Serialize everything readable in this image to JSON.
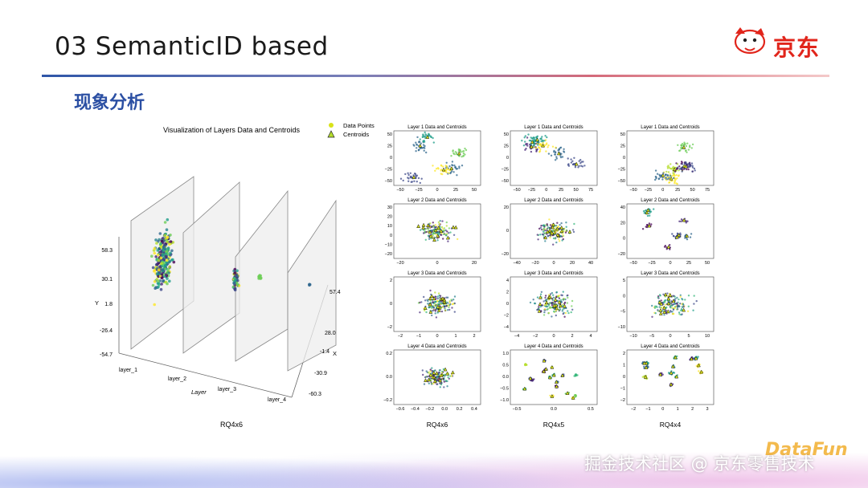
{
  "slide": {
    "title": "03 SemanticID based",
    "subtitle": "现象分析",
    "brand": "京东",
    "watermark": "掘金技术社区 @ 京东零售技术",
    "watermark_logo": "DataFun",
    "colors": {
      "accent_blue": "#2b4fa3",
      "brand_red": "#e1251b",
      "viridis_dark": "#440154",
      "viridis_mid": "#21918c",
      "viridis_yellow": "#fde725"
    }
  },
  "figure3d": {
    "title": "Visualization of Layers Data and Centroids",
    "legend": [
      "Data Points",
      "Centroids"
    ],
    "y_axis_label": "Y",
    "x_axis_label": "X",
    "z_axis_label": "Layer",
    "y_ticks": [
      "58.3",
      "30.1",
      "1.8",
      "-26.4",
      "-54.7"
    ],
    "x_ticks": [
      "57.4",
      "28.0",
      "-1.4",
      "-30.9",
      "-60.3"
    ],
    "layer_ticks": [
      "layer_1",
      "layer_2",
      "layer_3",
      "layer_4"
    ],
    "caption": "RQ4x6"
  },
  "grid": {
    "columns": [
      {
        "caption": "RQ4x6",
        "panels": [
          {
            "title": "Layer 1 Data and Centroids",
            "xticks": [
              "−50",
              "−25",
              "0",
              "25",
              "50"
            ],
            "yticks": [
              "50",
              "25",
              "0",
              "−25",
              "−50"
            ]
          },
          {
            "title": "Layer 2 Data and Centroids",
            "xticks": [
              "−20",
              "0",
              "20"
            ],
            "yticks": [
              "30",
              "20",
              "10",
              "0",
              "−10",
              "−20"
            ]
          },
          {
            "title": "Layer 3 Data and Centroids",
            "xticks": [
              "−2",
              "−1",
              "0",
              "1",
              "2"
            ],
            "yticks": [
              "2",
              "0",
              "−2"
            ]
          },
          {
            "title": "Layer 4 Data and Centroids",
            "xticks": [
              "−0.6",
              "−0.4",
              "−0.2",
              "0.0",
              "0.2",
              "0.4"
            ],
            "yticks": [
              "0.2",
              "0.0",
              "−0.2"
            ]
          }
        ]
      },
      {
        "caption": "RQ4x5",
        "panels": [
          {
            "title": "Layer 1 Data and Centroids",
            "xticks": [
              "−50",
              "−25",
              "0",
              "25",
              "50",
              "75"
            ],
            "yticks": [
              "50",
              "25",
              "0",
              "−25",
              "−50"
            ]
          },
          {
            "title": "Layer 2 Data and Centroids",
            "xticks": [
              "−40",
              "−20",
              "0",
              "20",
              "40"
            ],
            "yticks": [
              "20",
              "0",
              "−20"
            ]
          },
          {
            "title": "Layer 3 Data and Centroids",
            "xticks": [
              "−4",
              "−2",
              "0",
              "2",
              "4"
            ],
            "yticks": [
              "4",
              "2",
              "0",
              "−2",
              "−4"
            ]
          },
          {
            "title": "Layer 4 Data and Centroids",
            "xticks": [
              "−0.5",
              "0.0",
              "0.5"
            ],
            "yticks": [
              "1.0",
              "0.5",
              "0.0",
              "−0.5",
              "−1.0"
            ]
          }
        ]
      },
      {
        "caption": "RQ4x4",
        "panels": [
          {
            "title": "Layer 1 Data and Centroids",
            "xticks": [
              "−50",
              "−25",
              "0",
              "25",
              "50",
              "75"
            ],
            "yticks": [
              "50",
              "25",
              "0",
              "−25",
              "−50"
            ]
          },
          {
            "title": "Layer 2 Data and Centroids",
            "xticks": [
              "−50",
              "−25",
              "0",
              "25",
              "50"
            ],
            "yticks": [
              "40",
              "20",
              "0",
              "−20"
            ]
          },
          {
            "title": "Layer 3 Data and Centroids",
            "xticks": [
              "−10",
              "−5",
              "0",
              "5",
              "10"
            ],
            "yticks": [
              "5",
              "0",
              "−5",
              "−10"
            ]
          },
          {
            "title": "Layer 4 Data and Centroids",
            "xticks": [
              "−2",
              "−1",
              "0",
              "1",
              "2",
              "3"
            ],
            "yticks": [
              "2",
              "1",
              "0",
              "−1",
              "−2"
            ]
          }
        ]
      }
    ]
  },
  "chart_data": [
    {
      "type": "scatter",
      "title": "Visualization of Layers Data and Centroids",
      "series": [
        {
          "name": "Data Points"
        },
        {
          "name": "Centroids"
        }
      ]
    }
  ]
}
